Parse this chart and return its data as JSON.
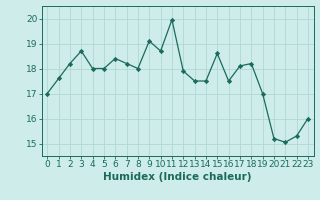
{
  "x": [
    0,
    1,
    2,
    3,
    4,
    5,
    6,
    7,
    8,
    9,
    10,
    11,
    12,
    13,
    14,
    15,
    16,
    17,
    18,
    19,
    20,
    21,
    22,
    23
  ],
  "y": [
    17.0,
    17.6,
    18.2,
    18.7,
    18.0,
    18.0,
    18.4,
    18.2,
    18.0,
    19.1,
    18.7,
    19.95,
    17.9,
    17.5,
    17.5,
    18.6,
    17.5,
    18.1,
    18.2,
    17.0,
    15.2,
    15.05,
    15.3,
    16.0
  ],
  "line_color": "#1a6b5a",
  "marker": "D",
  "marker_size": 2.2,
  "bg_color": "#ceecea",
  "grid_color": "#b0d8d2",
  "xlabel": "Humidex (Indice chaleur)",
  "xlabel_fontsize": 7.5,
  "tick_fontsize": 6.5,
  "ylim": [
    14.5,
    20.5
  ],
  "xlim": [
    -0.5,
    23.5
  ],
  "yticks": [
    15,
    16,
    17,
    18,
    19,
    20
  ],
  "xticks": [
    0,
    1,
    2,
    3,
    4,
    5,
    6,
    7,
    8,
    9,
    10,
    11,
    12,
    13,
    14,
    15,
    16,
    17,
    18,
    19,
    20,
    21,
    22,
    23
  ]
}
